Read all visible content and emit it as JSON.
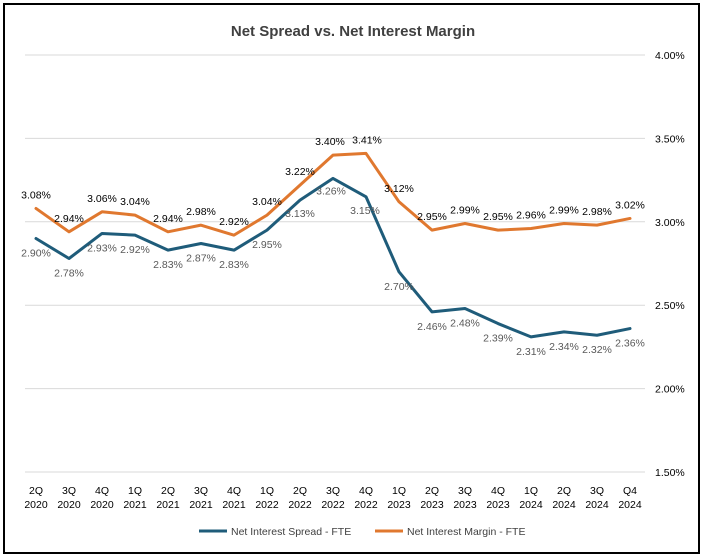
{
  "chart_data": {
    "type": "line",
    "title": "Net Spread vs. Net Interest Margin",
    "categories": [
      [
        "2Q",
        "2020"
      ],
      [
        "3Q",
        "2020"
      ],
      [
        "4Q",
        "2020"
      ],
      [
        "1Q",
        "2021"
      ],
      [
        "2Q",
        "2021"
      ],
      [
        "3Q",
        "2021"
      ],
      [
        "4Q",
        "2021"
      ],
      [
        "1Q",
        "2022"
      ],
      [
        "2Q",
        "2022"
      ],
      [
        "3Q",
        "2022"
      ],
      [
        "4Q",
        "2022"
      ],
      [
        "1Q",
        "2023"
      ],
      [
        "2Q",
        "2023"
      ],
      [
        "3Q",
        "2023"
      ],
      [
        "4Q",
        "2023"
      ],
      [
        "1Q",
        "2024"
      ],
      [
        "2Q",
        "2024"
      ],
      [
        "3Q",
        "2024"
      ],
      [
        "Q4",
        "2024"
      ]
    ],
    "y_axis": {
      "position": "right",
      "ylim": [
        1.5,
        4.0
      ],
      "ticks": [
        "1.50%",
        "2.00%",
        "2.50%",
        "3.00%",
        "3.50%",
        "4.00%"
      ],
      "tick_values": [
        1.5,
        2.0,
        2.5,
        3.0,
        3.5,
        4.0
      ]
    },
    "grid": true,
    "legend": "bottom",
    "series": [
      {
        "name": "Net Interest Spread - FTE",
        "color": "#1f5c7a",
        "values": [
          2.9,
          2.78,
          2.93,
          2.92,
          2.83,
          2.87,
          2.83,
          2.95,
          3.13,
          3.26,
          3.15,
          2.7,
          2.46,
          2.48,
          2.39,
          2.31,
          2.34,
          2.32,
          2.36
        ],
        "labels": [
          "2.90%",
          "2.78%",
          "2.93%",
          "2.92%",
          "2.83%",
          "2.87%",
          "2.83%",
          "2.95%",
          "3.13%",
          "3.26%",
          "3.15%",
          "2.70%",
          "2.46%",
          "2.48%",
          "2.39%",
          "2.31%",
          "2.34%",
          "2.32%",
          "2.36%"
        ]
      },
      {
        "name": "Net Interest Margin - FTE",
        "color": "#e0782f",
        "values": [
          3.08,
          2.94,
          3.06,
          3.04,
          2.94,
          2.98,
          2.92,
          3.04,
          3.22,
          3.4,
          3.41,
          3.12,
          2.95,
          2.99,
          2.95,
          2.96,
          2.99,
          2.98,
          3.02
        ],
        "labels": [
          "3.08%",
          "2.94%",
          "3.06%",
          "3.04%",
          "2.94%",
          "2.98%",
          "2.92%",
          "3.04%",
          "3.22%",
          "3.40%",
          "3.41%",
          "3.12%",
          "2.95%",
          "2.99%",
          "2.95%",
          "2.96%",
          "2.99%",
          "2.98%",
          "3.02%"
        ]
      }
    ]
  }
}
